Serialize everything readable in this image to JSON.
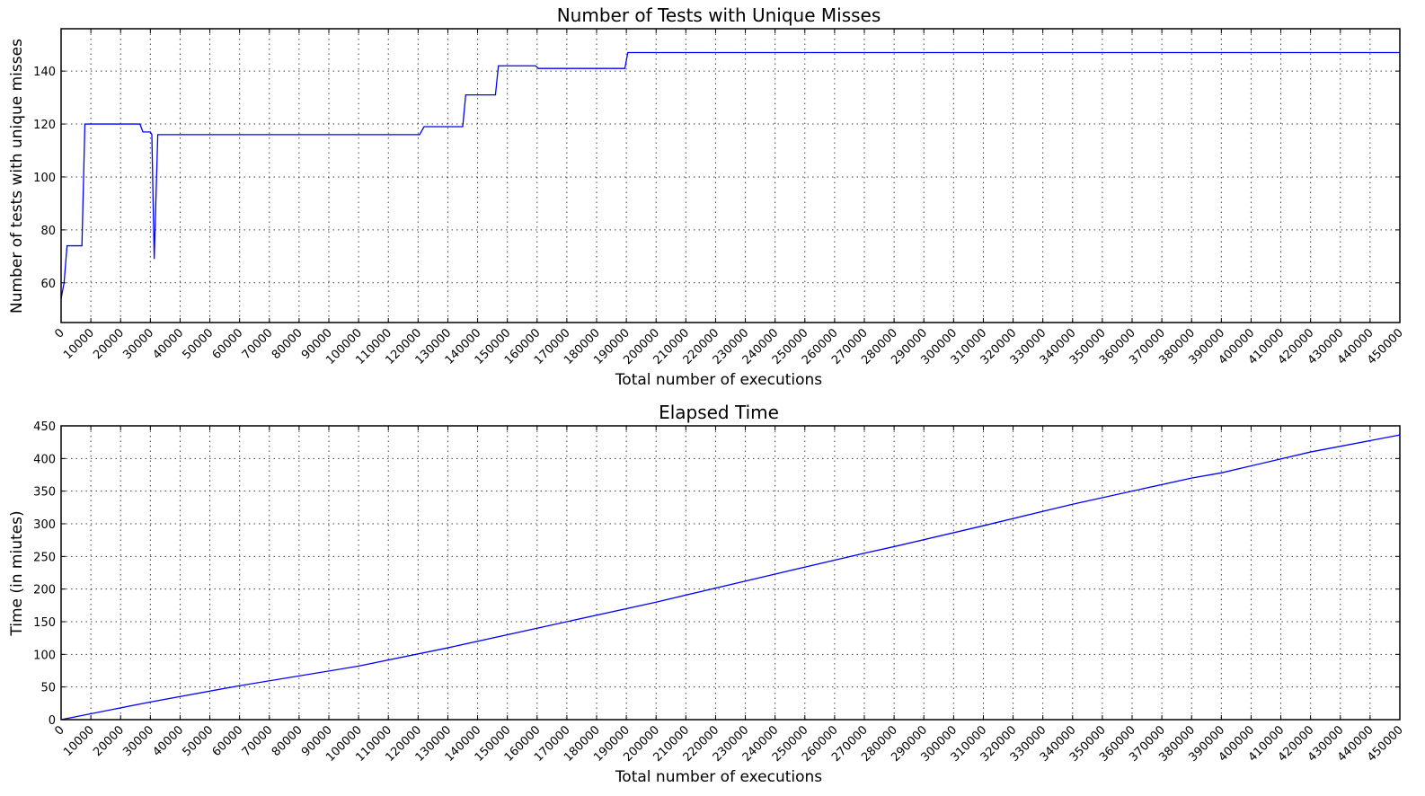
{
  "chart_data": [
    {
      "type": "line",
      "title": "Number of Tests with Unique Misses",
      "xlabel": "Total number of executions",
      "ylabel": "Number of tests with unique misses",
      "xlim": [
        0,
        450000
      ],
      "ylim": [
        45,
        156
      ],
      "xticks": [
        0,
        10000,
        20000,
        30000,
        40000,
        50000,
        60000,
        70000,
        80000,
        90000,
        100000,
        110000,
        120000,
        130000,
        140000,
        150000,
        160000,
        170000,
        180000,
        190000,
        200000,
        210000,
        220000,
        230000,
        240000,
        250000,
        260000,
        270000,
        280000,
        290000,
        300000,
        310000,
        320000,
        330000,
        340000,
        350000,
        360000,
        370000,
        380000,
        390000,
        400000,
        410000,
        420000,
        430000,
        440000,
        450000
      ],
      "yticks": [
        60,
        80,
        100,
        120,
        140
      ],
      "grid": true,
      "series": [
        {
          "color": "#0000ff",
          "x": [
            0,
            1000,
            2000,
            7000,
            8000,
            26500,
            27500,
            30000,
            30500,
            31300,
            32500,
            120500,
            122000,
            135000,
            136000,
            146000,
            147000,
            159500,
            160500,
            189500,
            190500,
            450000
          ],
          "y": [
            54,
            60,
            74,
            74,
            120,
            120,
            117,
            117,
            116,
            69,
            116,
            116,
            119,
            119,
            131,
            131,
            142,
            142,
            141,
            141,
            147,
            147
          ]
        }
      ]
    },
    {
      "type": "line",
      "title": "Elapsed Time",
      "xlabel": "Total number of executions",
      "ylabel": "Time (in miutes)",
      "xlim": [
        0,
        450000
      ],
      "ylim": [
        0,
        450
      ],
      "xticks": [
        0,
        10000,
        20000,
        30000,
        40000,
        50000,
        60000,
        70000,
        80000,
        90000,
        100000,
        110000,
        120000,
        130000,
        140000,
        150000,
        160000,
        170000,
        180000,
        190000,
        200000,
        210000,
        220000,
        230000,
        240000,
        250000,
        260000,
        270000,
        280000,
        290000,
        300000,
        310000,
        320000,
        330000,
        340000,
        350000,
        360000,
        370000,
        380000,
        390000,
        400000,
        410000,
        420000,
        430000,
        440000,
        450000
      ],
      "yticks": [
        0,
        50,
        100,
        150,
        200,
        250,
        300,
        350,
        400,
        450
      ],
      "grid": true,
      "series": [
        {
          "color": "#0000ff",
          "x": [
            0,
            30000,
            60000,
            100000,
            130000,
            160000,
            200000,
            240000,
            270000,
            280000,
            310000,
            340000,
            380000,
            390000,
            420000,
            450000
          ],
          "y": [
            0,
            27,
            52,
            82,
            110,
            140,
            180,
            223,
            255,
            265,
            297,
            330,
            370,
            378,
            410,
            436
          ]
        }
      ]
    }
  ]
}
